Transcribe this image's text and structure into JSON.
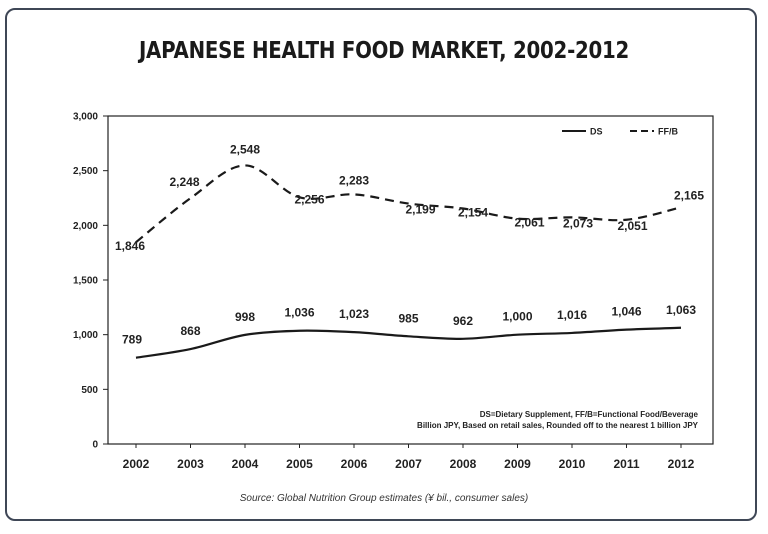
{
  "title": "JAPANESE HEALTH FOOD MARKET, 2002-2012",
  "source": "Source: Global Nutrition Group estimates (¥ bil., consumer sales)",
  "notes": [
    "DS=Dietary Supplement, FF/B=Functional Food/Beverage",
    "Billion JPY, Based on retail sales, Rounded off to the nearest 1 billion JPY"
  ],
  "chart_data": {
    "type": "line",
    "title": "JAPANESE HEALTH FOOD MARKET, 2002-2012",
    "xlabel": "",
    "ylabel": "",
    "categories": [
      "2002",
      "2003",
      "2004",
      "2005",
      "2006",
      "2007",
      "2008",
      "2009",
      "2010",
      "2011",
      "2012"
    ],
    "ylim": [
      0,
      3000
    ],
    "yticks": [
      0,
      500,
      1000,
      1500,
      2000,
      2500,
      3000
    ],
    "ytick_labels": [
      "0",
      "500",
      "1,000",
      "1,500",
      "2,000",
      "2,500",
      "3,000"
    ],
    "grid": false,
    "legend_position": "top-right",
    "series": [
      {
        "name": "DS",
        "style": "solid",
        "color": "#1a1a1a",
        "values": [
          789,
          868,
          998,
          1036,
          1023,
          985,
          962,
          1000,
          1016,
          1046,
          1063
        ],
        "labels": [
          "789",
          "868",
          "998",
          "1,036",
          "1,023",
          "985",
          "962",
          "1,000",
          "1,016",
          "1,046",
          "1,063"
        ]
      },
      {
        "name": "FF/B",
        "style": "dashed",
        "color": "#1a1a1a",
        "values": [
          1846,
          2248,
          2548,
          2256,
          2283,
          2199,
          2154,
          2061,
          2073,
          2051,
          2165
        ],
        "labels": [
          "1,846",
          "2,248",
          "2,548",
          "2,256",
          "2,283",
          "2,199",
          "2,154",
          "2,061",
          "2,073",
          "2,051",
          "2,165"
        ]
      }
    ]
  }
}
